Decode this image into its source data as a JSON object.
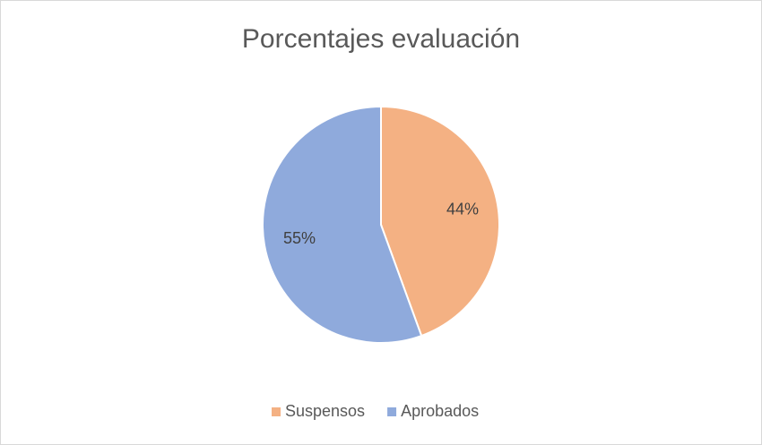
{
  "chart_data": {
    "type": "pie",
    "title": "Porcentajes evaluación",
    "categories": [
      "Suspensos",
      "Aprobados"
    ],
    "values": [
      44,
      55
    ],
    "value_labels": [
      "44%",
      "55%"
    ],
    "colors": [
      "#f4b183",
      "#8faadc"
    ],
    "legend": "bottom"
  }
}
